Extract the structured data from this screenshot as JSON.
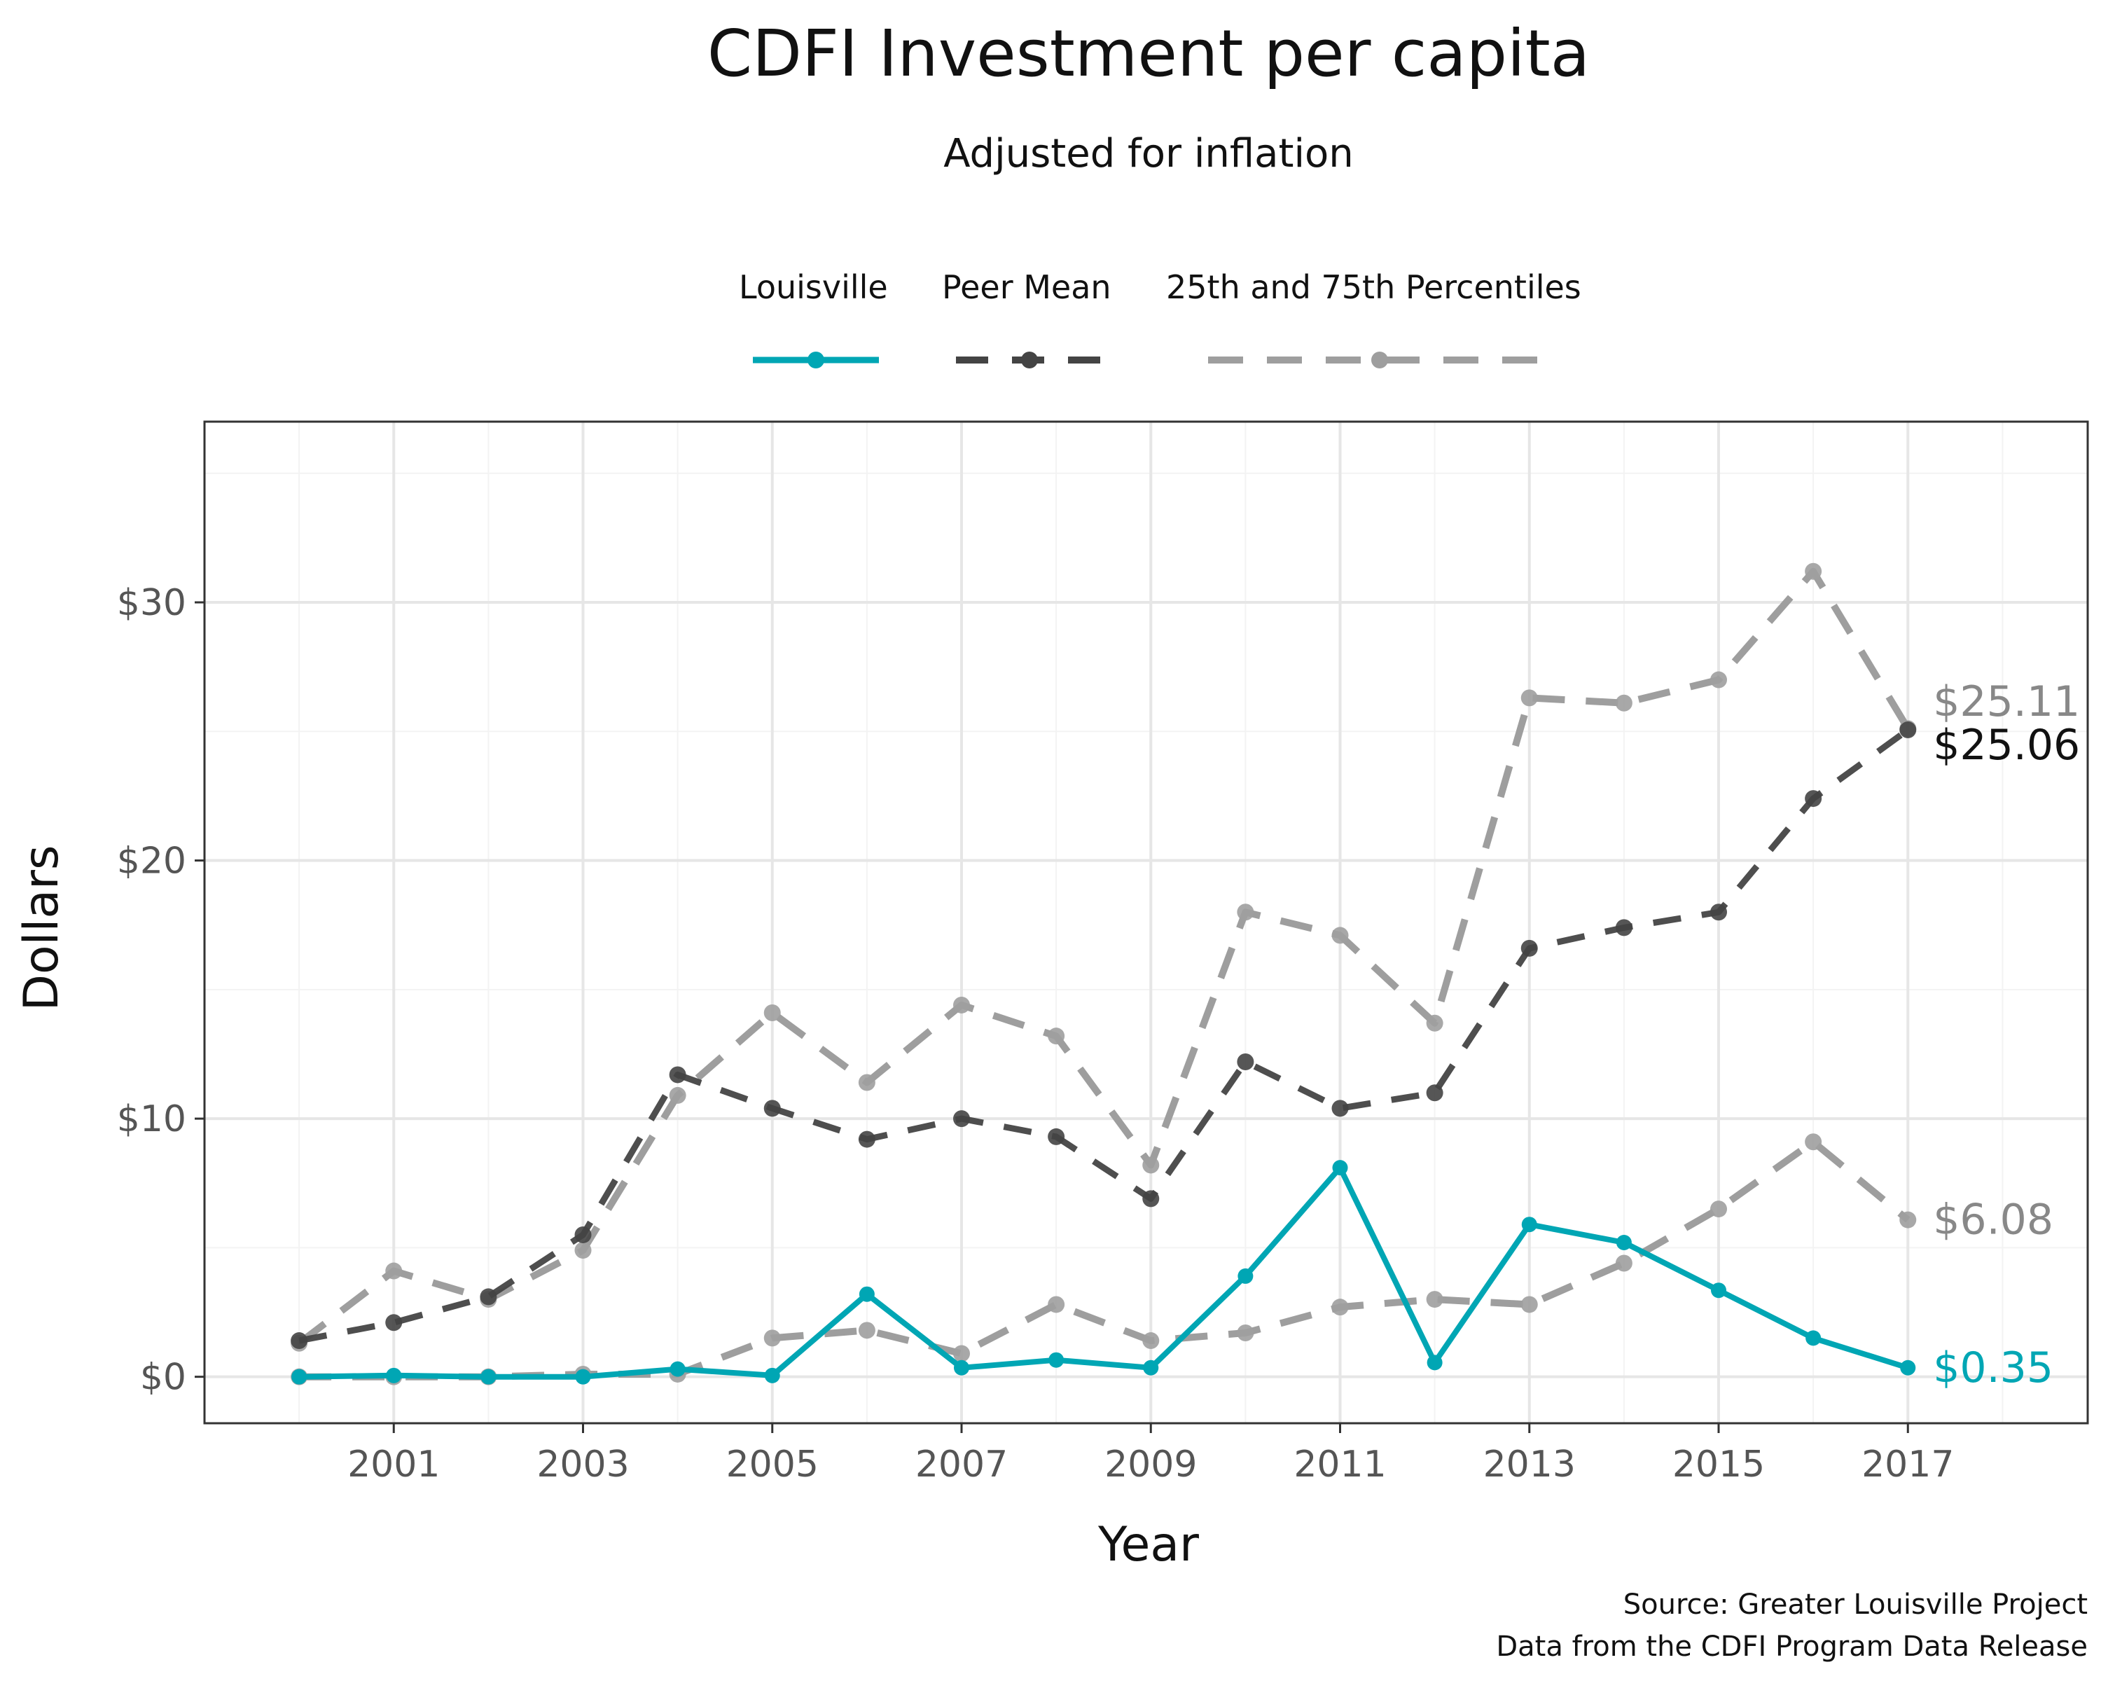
{
  "chart_data": {
    "type": "line",
    "title": "CDFI Investment per capita",
    "subtitle": "Adjusted for inflation",
    "xlabel": "Year",
    "ylabel": "Dollars",
    "xlim": [
      1999.0,
      2018.9
    ],
    "ylim": [
      -1.8,
      37
    ],
    "x_ticks": [
      2001,
      2003,
      2005,
      2007,
      2009,
      2011,
      2013,
      2015,
      2017
    ],
    "x_tick_labels": [
      "2001",
      "2003",
      "2005",
      "2007",
      "2009",
      "2011",
      "2013",
      "2015",
      "2017"
    ],
    "y_ticks": [
      0,
      10,
      20,
      30
    ],
    "y_tick_labels": [
      "$0",
      "$10",
      "$20",
      "$30"
    ],
    "grid": true,
    "legend_position": "top",
    "x": [
      2000,
      2001,
      2002,
      2003,
      2004,
      2005,
      2006,
      2007,
      2008,
      2009,
      2010,
      2011,
      2012,
      2013,
      2014,
      2015,
      2016,
      2017
    ],
    "series": [
      {
        "name": "Louisville",
        "role": "main",
        "color": "#00A6B4",
        "dash": "solid",
        "values": [
          0.0,
          0.05,
          0.0,
          0.0,
          0.3,
          0.05,
          3.2,
          0.35,
          0.65,
          0.35,
          3.9,
          8.1,
          0.55,
          5.9,
          5.2,
          3.35,
          1.5,
          0.35
        ],
        "end_label": "$0.35"
      },
      {
        "name": "Peer Mean",
        "role": "mean",
        "color": "#444444",
        "dash": "dashed",
        "values": [
          1.4,
          2.1,
          3.1,
          5.5,
          11.7,
          10.4,
          9.2,
          10.0,
          9.3,
          6.9,
          12.2,
          10.4,
          11.0,
          16.6,
          17.4,
          18.0,
          22.4,
          25.06
        ],
        "end_label": "$25.06"
      },
      {
        "name": "25th and 75th Percentiles",
        "role": "percentile-75",
        "color": "#9E9E9E",
        "dash": "dashed",
        "values": [
          1.3,
          4.1,
          3.0,
          4.9,
          10.9,
          14.1,
          11.4,
          14.4,
          13.2,
          8.2,
          18.0,
          17.1,
          13.7,
          26.3,
          26.1,
          27.0,
          31.2,
          25.11
        ],
        "end_label": "$25.11"
      },
      {
        "name": "25th and 75th Percentiles",
        "role": "percentile-25",
        "color": "#9E9E9E",
        "dash": "dashed",
        "values": [
          0.0,
          0.0,
          0.0,
          0.1,
          0.1,
          1.5,
          1.8,
          0.9,
          2.8,
          1.4,
          1.7,
          2.7,
          3.0,
          2.8,
          4.4,
          6.5,
          9.1,
          6.08
        ],
        "end_label": "$6.08"
      }
    ],
    "legend": [
      {
        "label": "Louisville",
        "color": "#00A6B4",
        "dash": "solid"
      },
      {
        "label": "Peer Mean",
        "color": "#444444",
        "dash": "dashed"
      },
      {
        "label": "25th and 75th Percentiles",
        "color": "#9E9E9E",
        "dash": "dashed"
      }
    ],
    "caption_lines": [
      "Source: Greater Louisville Project",
      "Data from the CDFI Program Data Release"
    ]
  }
}
